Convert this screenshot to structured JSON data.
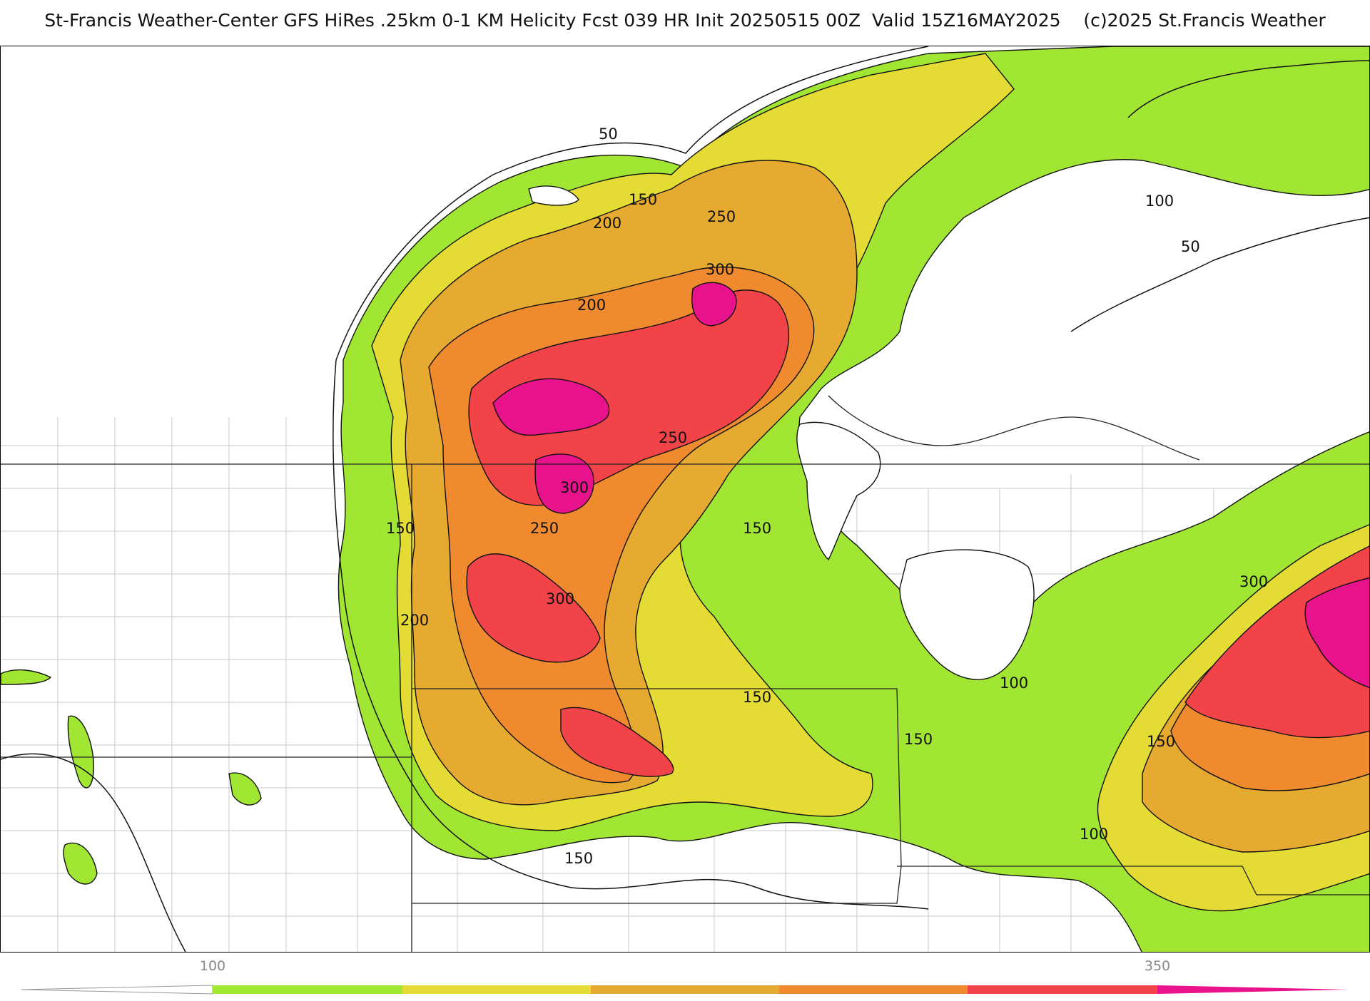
{
  "header": {
    "title": "St-Francis Weather-Center GFS HiRes .25km 0-1 KM Helicity Fcst 039 HR Init 20250515 00Z  Valid 15Z16MAY2025",
    "copyright": "(c)2025 St.Francis Weather"
  },
  "colors": {
    "lt100": "#ffffff",
    "c100": "#a2e634",
    "c150": "#e4dc34",
    "c200": "#e6aa30",
    "c250": "#f08a2e",
    "c300": "#f24448",
    "c350": "#e8128c",
    "contour": "#111111",
    "boundary": "#222222",
    "county": "#c8c8c8"
  },
  "contour_labels": [
    "50",
    "150",
    "200",
    "250",
    "300",
    "200",
    "250",
    "300",
    "150",
    "250",
    "300",
    "200",
    "150",
    "150",
    "150",
    "150",
    "100",
    "100",
    "50",
    "150",
    "100",
    "300"
  ],
  "colorbar": {
    "labels": [
      "100",
      "350"
    ],
    "colors": [
      "#a2e634",
      "#e4dc34",
      "#e6aa30",
      "#f08a2e",
      "#f24448",
      "#e8128c"
    ]
  }
}
